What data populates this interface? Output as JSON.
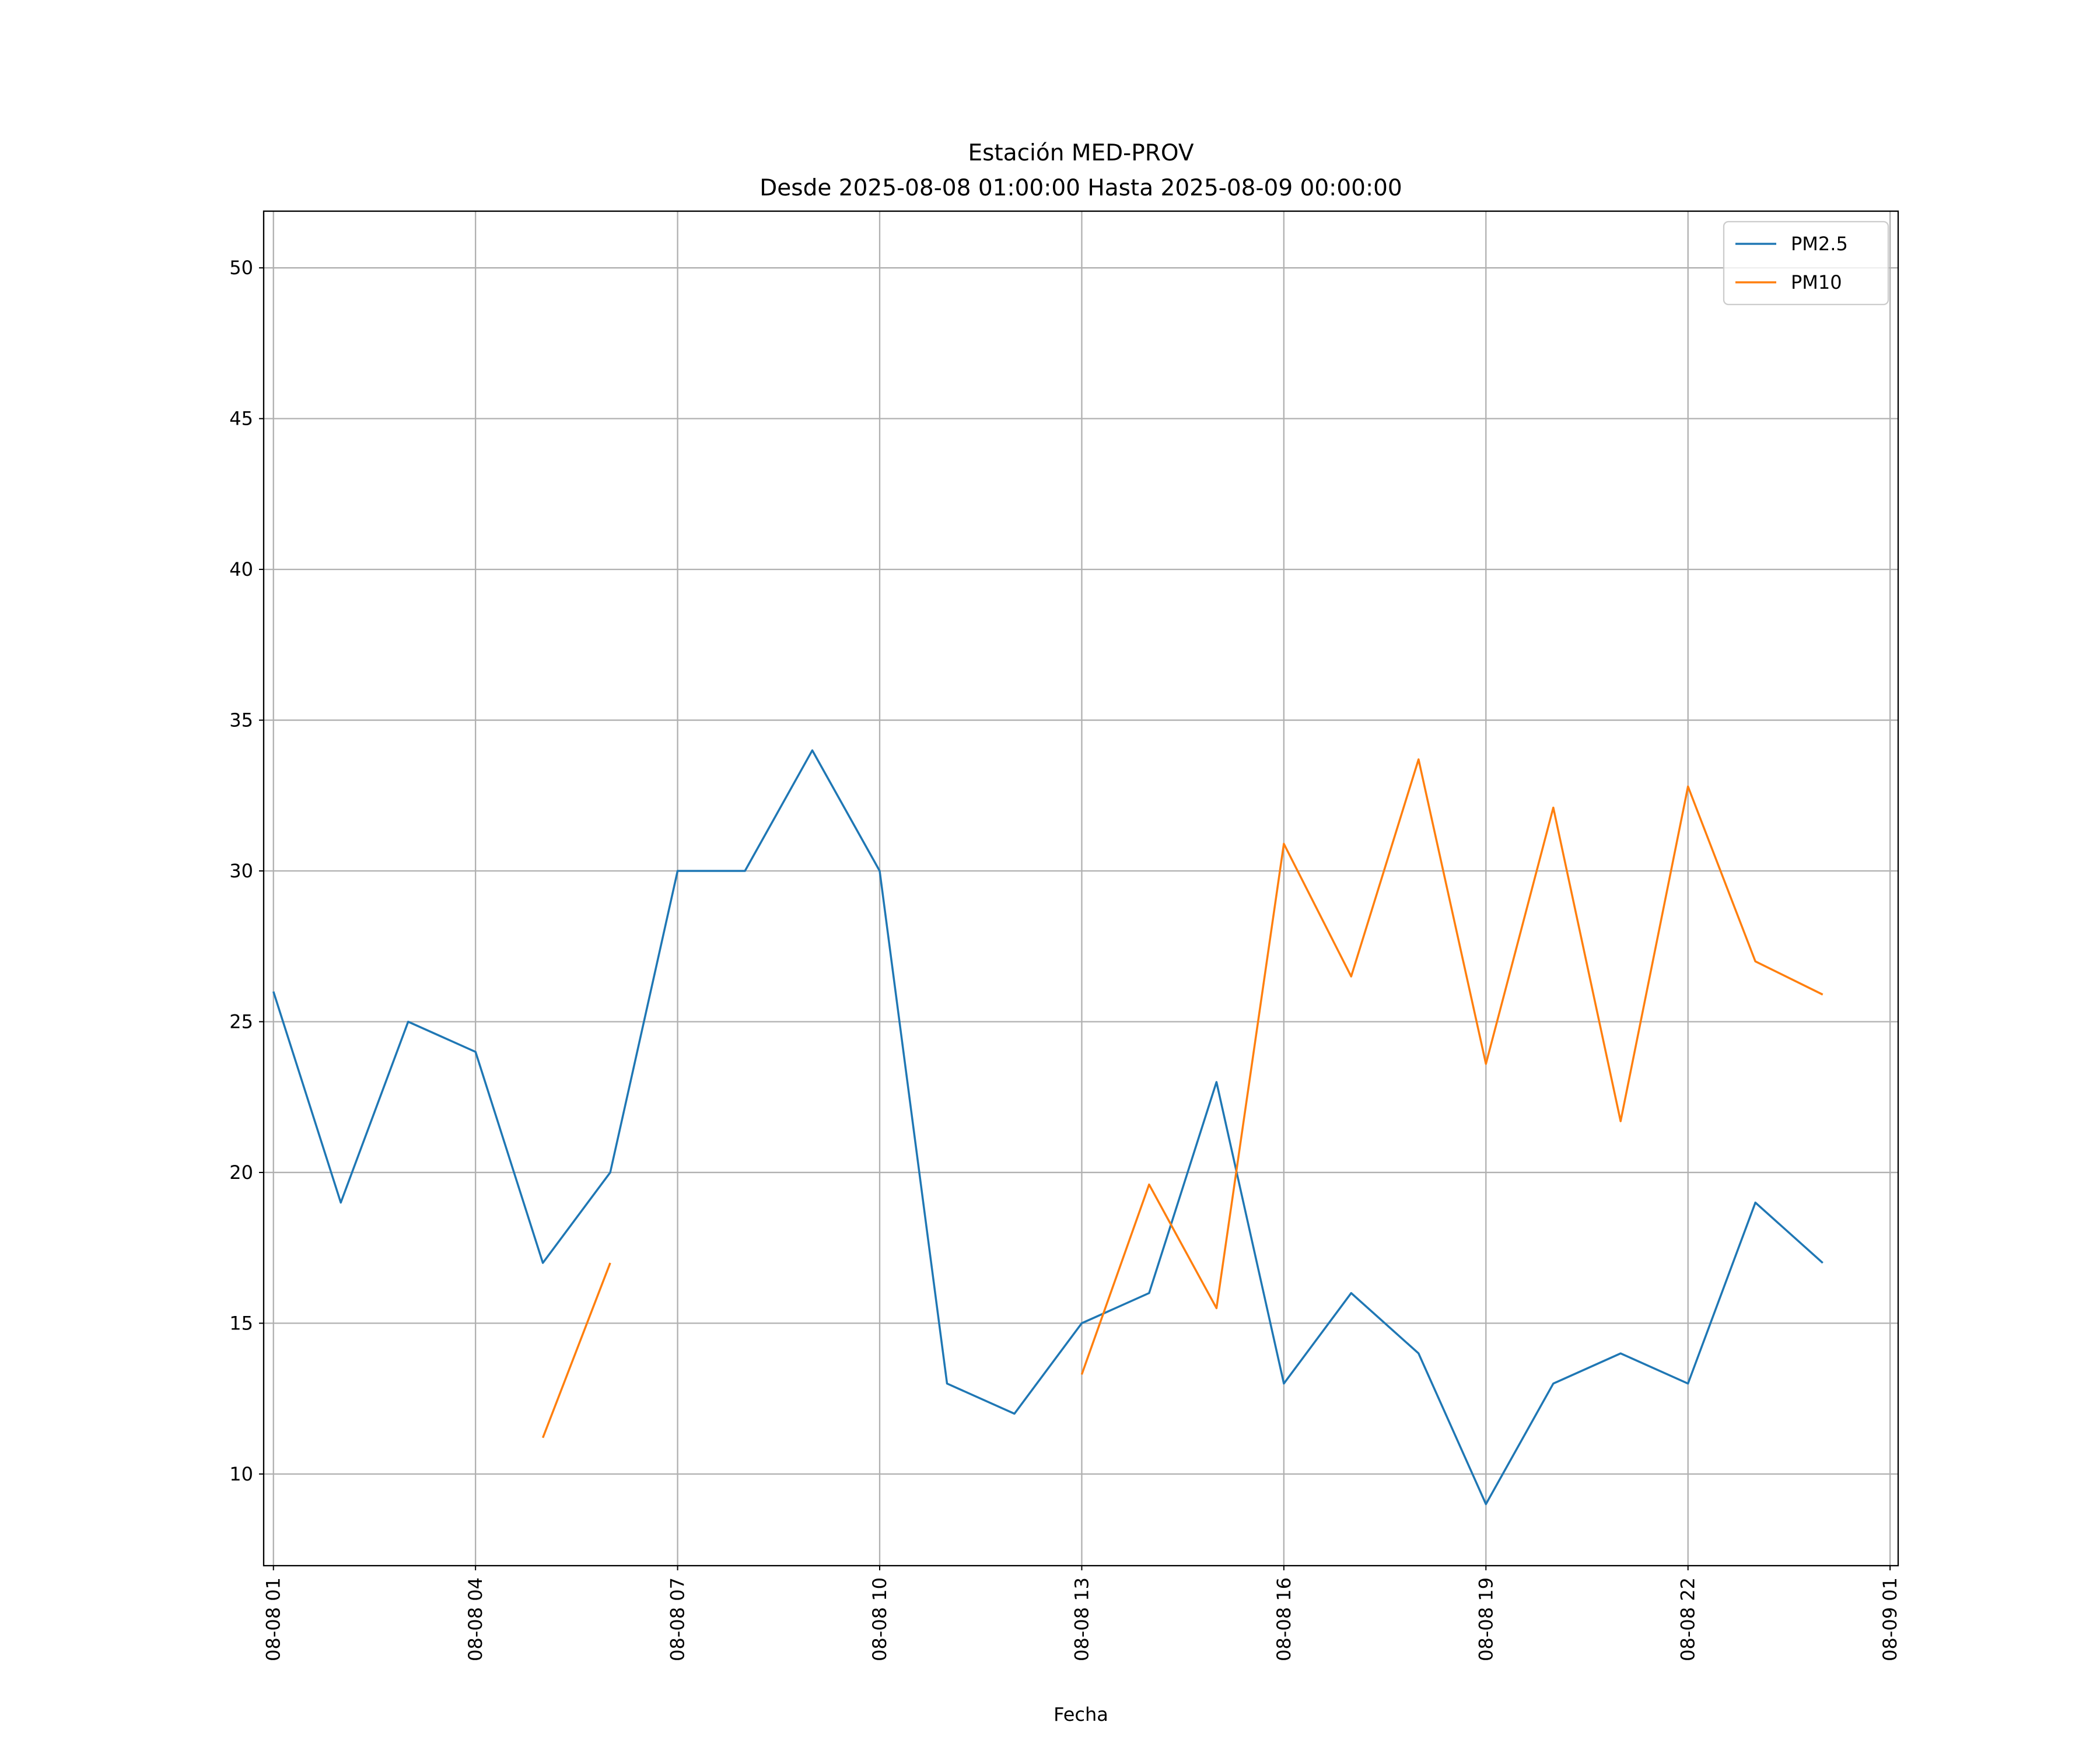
{
  "chart_data": {
    "type": "line",
    "title": "Estación MED-PROV",
    "subtitle": "Desde 2025-08-08 01:00:00 Hasta 2025-08-09 00:00:00",
    "xlabel": "Fecha",
    "ylabel": "",
    "x_hours": [
      1,
      2,
      3,
      4,
      5,
      6,
      7,
      8,
      9,
      10,
      11,
      12,
      13,
      14,
      15,
      16,
      17,
      18,
      19,
      20,
      21,
      22,
      23,
      24
    ],
    "xlim_hours": [
      0.855,
      25.12
    ],
    "ylim": [
      6.96,
      51.88
    ],
    "grid": true,
    "legend_position": "top-right",
    "x_ticks": [
      {
        "hour": 1,
        "label": "08-08 01"
      },
      {
        "hour": 4,
        "label": "08-08 04"
      },
      {
        "hour": 7,
        "label": "08-08 07"
      },
      {
        "hour": 10,
        "label": "08-08 10"
      },
      {
        "hour": 13,
        "label": "08-08 13"
      },
      {
        "hour": 16,
        "label": "08-08 16"
      },
      {
        "hour": 19,
        "label": "08-08 19"
      },
      {
        "hour": 22,
        "label": "08-08 22"
      },
      {
        "hour": 25,
        "label": "08-09 01"
      }
    ],
    "y_ticks": [
      10,
      15,
      20,
      25,
      30,
      35,
      40,
      45,
      50
    ],
    "series": [
      {
        "name": "PM2.5",
        "color": "#1f77b4",
        "values": [
          26,
          19,
          25,
          24,
          17,
          20,
          30,
          30,
          34,
          30,
          13,
          12,
          15,
          16,
          23,
          13,
          16,
          14,
          9,
          13,
          14,
          13,
          19,
          17
        ]
      },
      {
        "name": "PM10",
        "color": "#ff7f0e",
        "values": [
          null,
          null,
          null,
          null,
          11.2,
          17,
          null,
          null,
          null,
          null,
          null,
          null,
          13.3,
          19.6,
          15.5,
          30.9,
          26.5,
          33.7,
          23.6,
          32.1,
          21.7,
          32.8,
          27.0,
          25.9
        ]
      }
    ]
  }
}
